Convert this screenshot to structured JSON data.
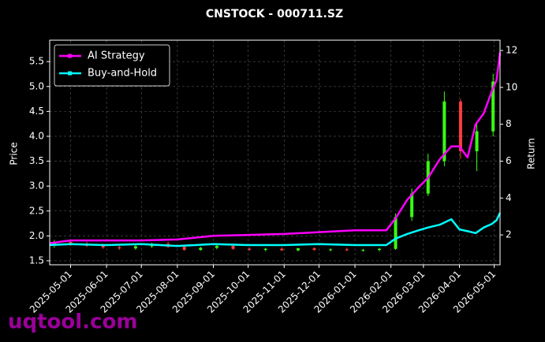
{
  "chart_data": {
    "type": "candlestick",
    "title": "CNSTOCK - 000711.SZ",
    "ylabel": "Price",
    "y2label": "Return",
    "watermark": "uqtool.com",
    "up_color": "#39ff14",
    "down_color": "#ff3b3b",
    "grid": true,
    "legend": "upper left",
    "xlim": [
      "2025-04-13",
      "2026-05-06"
    ],
    "xticks": [
      "2025-05-01",
      "2025-06-01",
      "2025-07-01",
      "2025-08-01",
      "2025-09-01",
      "2025-10-01",
      "2025-11-01",
      "2025-12-01",
      "2026-01-01",
      "2026-02-01",
      "2026-03-01",
      "2026-04-01",
      "2026-05-01"
    ],
    "ylim": [
      1.42,
      5.93
    ],
    "yticks": [
      1.5,
      {
        "value": 2,
        "label": "2.0"
      },
      2.5,
      {
        "value": 3,
        "label": "3.0"
      },
      3.5,
      {
        "value": 4,
        "label": "4.0"
      },
      4.5,
      {
        "value": 5,
        "label": "5.0"
      },
      5.5
    ],
    "y2lim": [
      0.38,
      12.56
    ],
    "y2ticks": [
      2,
      4,
      6,
      8,
      10,
      12
    ],
    "x": [
      "2025-04-17",
      "2025-05-01",
      "2025-05-15",
      "2025-05-29",
      "2025-06-12",
      "2025-06-26",
      "2025-07-10",
      "2025-07-24",
      "2025-08-07",
      "2025-08-21",
      "2025-09-04",
      "2025-09-18",
      "2025-10-02",
      "2025-10-16",
      "2025-10-30",
      "2025-11-13",
      "2025-11-27",
      "2025-12-11",
      "2025-12-25",
      "2026-01-08",
      "2026-01-22",
      "2026-02-05",
      "2026-02-19",
      "2026-03-05",
      "2026-03-19",
      "2026-04-02",
      "2026-04-16",
      "2026-04-30"
    ],
    "open": [
      1.8,
      1.88,
      1.83,
      1.8,
      1.77,
      1.75,
      1.79,
      1.84,
      1.78,
      1.72,
      1.76,
      1.8,
      1.74,
      1.72,
      1.74,
      1.71,
      1.75,
      1.72,
      1.73,
      1.71,
      1.72,
      1.74,
      2.38,
      2.85,
      3.5,
      4.7,
      3.7,
      4.1
    ],
    "high": [
      1.92,
      1.92,
      1.88,
      1.84,
      1.8,
      1.82,
      1.86,
      1.88,
      1.8,
      1.78,
      1.82,
      1.82,
      1.77,
      1.76,
      1.77,
      1.76,
      1.77,
      1.75,
      1.76,
      1.74,
      1.76,
      2.45,
      2.95,
      3.65,
      4.9,
      4.75,
      4.3,
      5.25
    ],
    "low": [
      1.76,
      1.8,
      1.78,
      1.74,
      1.72,
      1.72,
      1.76,
      1.76,
      1.7,
      1.7,
      1.73,
      1.72,
      1.7,
      1.69,
      1.7,
      1.69,
      1.7,
      1.69,
      1.7,
      1.68,
      1.69,
      1.72,
      2.3,
      2.8,
      3.4,
      3.55,
      3.3,
      4.0
    ],
    "close": [
      1.88,
      1.83,
      1.8,
      1.77,
      1.75,
      1.79,
      1.84,
      1.78,
      1.72,
      1.76,
      1.8,
      1.74,
      1.72,
      1.74,
      1.71,
      1.75,
      1.72,
      1.73,
      1.71,
      1.72,
      1.74,
      2.38,
      2.85,
      3.5,
      4.7,
      3.7,
      4.1,
      5.1
    ],
    "lines": {
      "x": [
        "2025-04-13",
        "2025-05-01",
        "2025-06-01",
        "2025-07-01",
        "2025-08-01",
        "2025-09-01",
        "2025-10-01",
        "2025-11-01",
        "2025-12-01",
        "2026-01-01",
        "2026-01-28",
        "2026-02-05",
        "2026-02-15",
        "2026-02-25",
        "2026-03-05",
        "2026-03-15",
        "2026-03-25",
        "2026-04-01",
        "2026-04-08",
        "2026-04-15",
        "2026-04-22",
        "2026-04-29",
        "2026-05-03",
        "2026-05-06"
      ],
      "series": [
        {
          "name": "AI Strategy",
          "color": "#ff00ff",
          "axis": "y2",
          "values": [
            1.55,
            1.7,
            1.7,
            1.7,
            1.75,
            1.95,
            2.0,
            2.05,
            2.15,
            2.25,
            2.25,
            2.9,
            3.9,
            4.6,
            5.1,
            6.1,
            6.8,
            6.8,
            6.2,
            8.0,
            8.6,
            9.8,
            10.4,
            11.9
          ]
        },
        {
          "name": "Buy-and-Hold",
          "color": "#00ffff",
          "axis": "y2",
          "values": [
            1.45,
            1.5,
            1.45,
            1.5,
            1.4,
            1.5,
            1.45,
            1.45,
            1.5,
            1.45,
            1.45,
            1.8,
            2.05,
            2.25,
            2.4,
            2.55,
            2.85,
            2.3,
            2.2,
            2.1,
            2.4,
            2.6,
            2.8,
            3.2
          ]
        }
      ]
    }
  }
}
